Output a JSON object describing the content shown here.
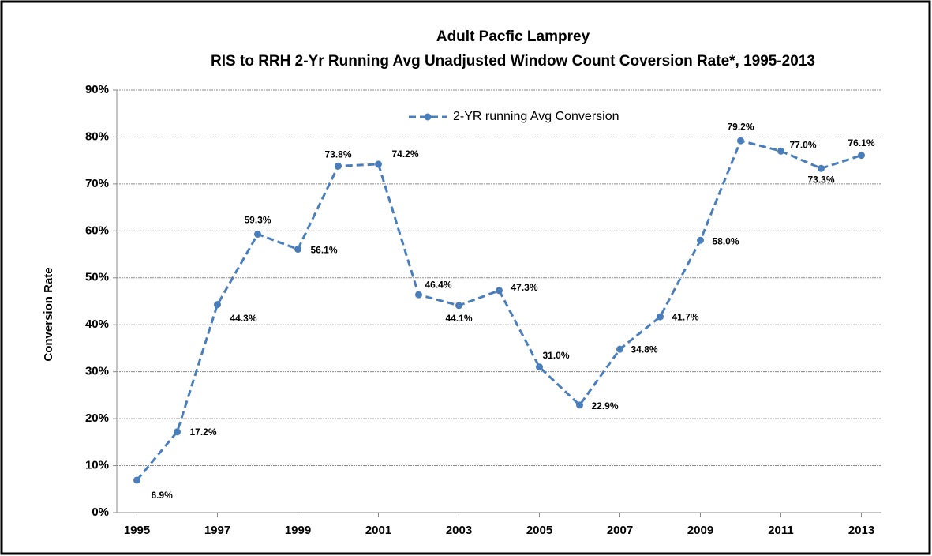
{
  "chart_data": {
    "type": "line",
    "title": "Adult Pacfic Lamprey",
    "subtitle": "RIS to RRH 2-Yr Running Avg Unadjusted Window Count Coversion Rate*, 1995-2013",
    "y_label": "Conversion  Rate",
    "x": [
      1995,
      1996,
      1997,
      1998,
      1999,
      2000,
      2001,
      2002,
      2003,
      2004,
      2005,
      2006,
      2007,
      2008,
      2009,
      2010,
      2011,
      2012,
      2013
    ],
    "xlim": [
      1994.5,
      2013.5
    ],
    "xticks": [
      1995,
      1997,
      1999,
      2001,
      2003,
      2005,
      2007,
      2009,
      2011,
      2013
    ],
    "ylim": [
      0,
      90
    ],
    "yticks": [
      {
        "value": 0,
        "label": "0%"
      },
      {
        "value": 10,
        "label": "10%"
      },
      {
        "value": 20,
        "label": "20%"
      },
      {
        "value": 30,
        "label": "30%"
      },
      {
        "value": 40,
        "label": "40%"
      },
      {
        "value": 50,
        "label": "50%"
      },
      {
        "value": 60,
        "label": "60%"
      },
      {
        "value": 70,
        "label": "70%"
      },
      {
        "value": 80,
        "label": "80%"
      },
      {
        "value": 90,
        "label": "90%"
      }
    ],
    "grid": true,
    "legend": "top",
    "series": [
      {
        "name": "2-YR running Avg Conversion",
        "color": "#4a7ebb",
        "values": [
          6.9,
          17.2,
          44.3,
          59.3,
          56.1,
          73.8,
          74.2,
          46.4,
          44.1,
          47.3,
          31.0,
          22.9,
          34.8,
          41.7,
          58.0,
          79.2,
          77.0,
          73.3,
          76.1
        ],
        "value_labels": [
          "6.9%",
          "17.2%",
          "44.3%",
          "59.3%",
          "56.1%",
          "73.8%",
          "74.2%",
          "46.4%",
          "44.1%",
          "47.3%",
          "31.0%",
          "22.9%",
          "34.8%",
          "41.7%",
          "58.0%",
          "79.2%",
          "77.0%",
          "73.3%",
          "76.1%"
        ]
      }
    ]
  }
}
